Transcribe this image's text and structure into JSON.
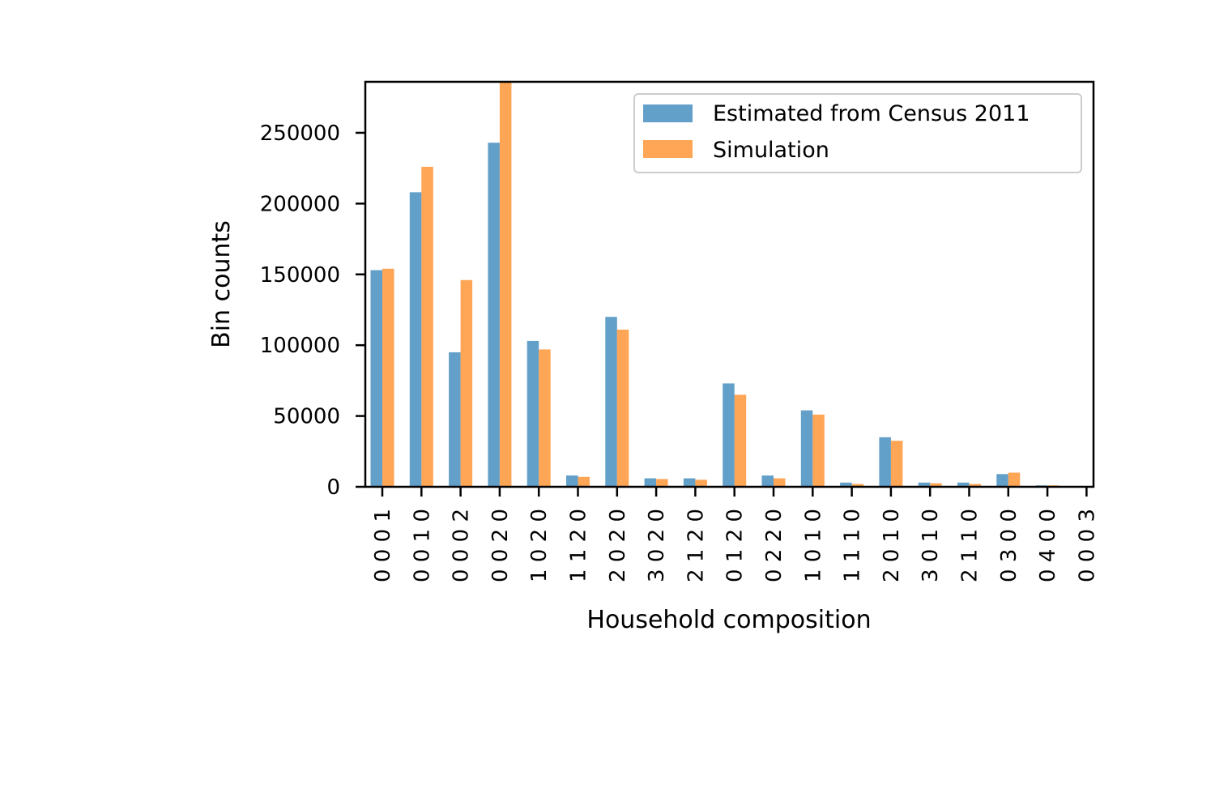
{
  "chart_data": {
    "type": "bar",
    "title": "",
    "xlabel": "Household composition",
    "ylabel": "Bin counts",
    "ylim": [
      0,
      286000
    ],
    "yticks": [
      0,
      50000,
      100000,
      150000,
      200000,
      250000
    ],
    "grid": false,
    "legend_position": "top-right",
    "categories": [
      "0 0 0 1",
      "0 0 1 0",
      "0 0 0 2",
      "0 0 2 0",
      "1 0 2 0",
      "1 1 2 0",
      "2 0 2 0",
      "3 0 2 0",
      "2 1 2 0",
      "0 1 2 0",
      "0 2 2 0",
      "1 0 1 0",
      "1 1 1 0",
      "2 0 1 0",
      "3 0 1 0",
      "2 1 1 0",
      "0 3 0 0",
      "0 4 0 0",
      "0 0 0 3"
    ],
    "series": [
      {
        "name": "Estimated from Census 2011",
        "color": "#1f77b4",
        "values": [
          153000,
          208000,
          95000,
          243000,
          103000,
          8000,
          120000,
          6000,
          6000,
          73000,
          8000,
          54000,
          3000,
          35000,
          3000,
          3000,
          9000,
          1000,
          0
        ]
      },
      {
        "name": "Simulation",
        "color": "#ff7f0e",
        "values": [
          154000,
          226000,
          146000,
          290000,
          97000,
          7000,
          111000,
          5500,
          5000,
          65000,
          6000,
          51000,
          2000,
          32500,
          2500,
          2000,
          10000,
          1000,
          0
        ]
      }
    ]
  }
}
